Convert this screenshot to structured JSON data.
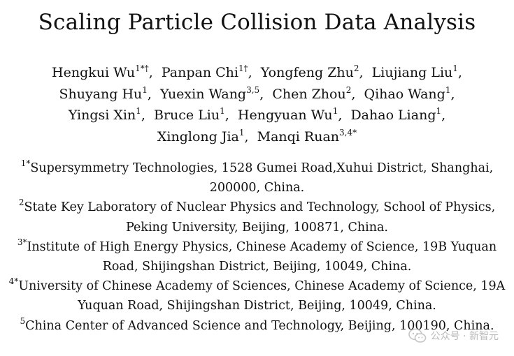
{
  "title": "Scaling Particle Collision Data Analysis",
  "author_lines": [
    [
      {
        "name": "Hengkui Wu",
        "sup": "1*†"
      },
      {
        "name": "Panpan Chi",
        "sup": "1†"
      },
      {
        "name": "Yongfeng Zhu",
        "sup": "2"
      },
      {
        "name": "Liujiang Liu",
        "sup": "1"
      }
    ],
    [
      {
        "name": "Shuyang Hu",
        "sup": "1"
      },
      {
        "name": "Yuexin Wang",
        "sup": "3,5"
      },
      {
        "name": "Chen Zhou",
        "sup": "2"
      },
      {
        "name": "Qihao Wang",
        "sup": "1"
      }
    ],
    [
      {
        "name": "Yingsi Xin",
        "sup": "1"
      },
      {
        "name": "Bruce Liu",
        "sup": "1"
      },
      {
        "name": "Hengyuan Wu",
        "sup": "1"
      },
      {
        "name": "Dahao Liang",
        "sup": "1"
      }
    ],
    [
      {
        "name": "Xinglong Jia",
        "sup": "1"
      },
      {
        "name": "Manqi Ruan",
        "sup": "3,4*"
      }
    ]
  ],
  "affiliations": [
    {
      "mark": "1*",
      "text": "Supersymmetry Technologies, 1528 Gumei Road,Xuhui District, Shanghai, 200000, China."
    },
    {
      "mark": "2",
      "text": "State Key Laboratory of Nuclear Physics and Technology,  School of Physics, Peking University,  Beijing, 100871, China."
    },
    {
      "mark": "3*",
      "text": "Institute of High Energy Physics, Chinese Academy of Science,  19B Yuquan Road, Shijingshan District, Beijing, 10049, China."
    },
    {
      "mark": "4*",
      "text": "University of Chinese Academy of Sciences, Chinese Academy of Science,  19A Yuquan Road, Shijingshan District, Beijing, 10049, China."
    },
    {
      "mark": "5",
      "text": "China Center of Advanced Science and Technology, Beijing, 100190, China."
    }
  ],
  "watermark": {
    "text": "公众号 · 新智元",
    "icon": "wechat-icon"
  }
}
